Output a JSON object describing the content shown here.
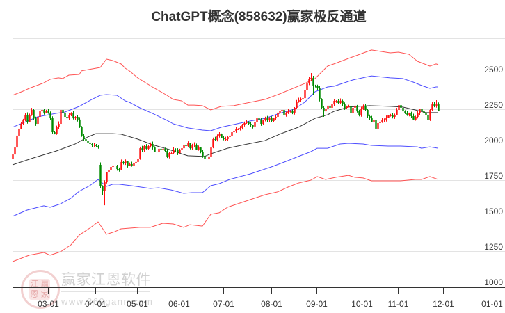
{
  "page": {
    "title": "ChatGPT概念(858632)赢家极反通道"
  },
  "watermark": {
    "brand_text": "赢家江恩软件",
    "url_text": "www.360gann.com",
    "seal_chars": [
      "江",
      "赢",
      "恩",
      "家"
    ]
  },
  "chart_data": {
    "type": "candlestick",
    "title": "ChatGPT概念(858632)赢家极反通道",
    "xlabel": "",
    "ylabel": "",
    "ylim": [
      1000,
      2750
    ],
    "grid": true,
    "legend": null,
    "y_ticks": [
      1000,
      1250,
      1500,
      1750,
      2000,
      2250,
      2500
    ],
    "x_ticks": [
      {
        "label": "03-01",
        "index": 17
      },
      {
        "label": "04-01",
        "index": 39.7
      },
      {
        "label": "05-01",
        "index": 59.7
      },
      {
        "label": "06-01",
        "index": 79.7
      },
      {
        "label": "07-01",
        "index": 101
      },
      {
        "label": "08-01",
        "index": 124
      },
      {
        "label": "09-01",
        "index": 145.7
      },
      {
        "label": "10-01",
        "index": 167.3
      },
      {
        "label": "11-01",
        "index": 184.7
      },
      {
        "label": "12-01",
        "index": 206.3
      },
      {
        "label": "01-01",
        "index": 229.7
      }
    ],
    "colors": {
      "up": "#ff1010",
      "down": "#008a00",
      "grid": "#e3e3e3",
      "axis": "#333333",
      "last_price": "#159c15"
    },
    "candles": {
      "first_open": 1900,
      "close": [
        1931,
        1980,
        2064,
        2113,
        2147,
        2177,
        2211,
        2162,
        2211,
        2245,
        2186,
        2147,
        2196,
        2235,
        2245,
        2226,
        2235,
        2226,
        2186,
        2088,
        2078,
        2123,
        2147,
        2245,
        2226,
        2196,
        2186,
        2206,
        2221,
        2186,
        2196,
        2177,
        2123,
        2064,
        2039,
        2025,
        2015,
        2005,
        1995,
        2000,
        1990,
        1980,
        1706,
        1672,
        1735,
        1804,
        1819,
        1843,
        1853,
        1853,
        1828,
        1824,
        1878,
        1868,
        1882,
        1853,
        1863,
        1853,
        1868,
        1878,
        1902,
        1975,
        1961,
        1990,
        1971,
        1990,
        2005,
        1980,
        1951,
        1946,
        1971,
        1966,
        1971,
        1956,
        1917,
        1941,
        1941,
        1966,
        1961,
        1941,
        1966,
        1975,
        2000,
        1990,
        2010,
        1975,
        1995,
        2000,
        1966,
        1980,
        1951,
        1922,
        1902,
        1897,
        1917,
        1980,
        2039,
        2034,
        2064,
        2074,
        2049,
        2039,
        2039,
        2054,
        2064,
        2088,
        2098,
        2108,
        2108,
        2118,
        2142,
        2152,
        2157,
        2147,
        2137,
        2128,
        2157,
        2186,
        2177,
        2147,
        2172,
        2186,
        2172,
        2186,
        2167,
        2186,
        2196,
        2226,
        2235,
        2245,
        2211,
        2221,
        2235,
        2235,
        2226,
        2260,
        2304,
        2314,
        2324,
        2328,
        2387,
        2431,
        2461,
        2471,
        2417,
        2412,
        2397,
        2319,
        2260,
        2235,
        2255,
        2275,
        2260,
        2284,
        2309,
        2309,
        2294,
        2309,
        2284,
        2260,
        2270,
        2270,
        2221,
        2260,
        2275,
        2235,
        2211,
        2250,
        2275,
        2245,
        2201,
        2186,
        2162,
        2172,
        2113,
        2152,
        2162,
        2172,
        2177,
        2191,
        2206,
        2206,
        2196,
        2211,
        2245,
        2279,
        2260,
        2235,
        2221,
        2211,
        2221,
        2201,
        2177,
        2196,
        2221,
        2250,
        2235,
        2221,
        2211,
        2172,
        2245,
        2284,
        2275,
        2284,
        2240
      ],
      "open_overrides": {
        "42": 1858
      },
      "high_overrides": {
        "41": 2000,
        "143": 2505,
        "201": 2299,
        "203": 2314
      },
      "low_overrides": {
        "0": 1890,
        "43": 1647,
        "44": 1573,
        "144": 2348,
        "149": 2196,
        "162": 2172
      }
    },
    "last_price_line": {
      "value": 2240,
      "style": "dashed"
    },
    "series": [
      {
        "name": "red-upper",
        "color": "#ff4040",
        "points": [
          [
            0,
            2348
          ],
          [
            5,
            2377
          ],
          [
            8,
            2397
          ],
          [
            15,
            2436
          ],
          [
            18,
            2461
          ],
          [
            22,
            2471
          ],
          [
            24,
            2466
          ],
          [
            27,
            2490
          ],
          [
            32,
            2495
          ],
          [
            33,
            2520
          ],
          [
            38,
            2534
          ],
          [
            42,
            2544
          ],
          [
            45,
            2603
          ],
          [
            48,
            2593
          ],
          [
            52,
            2569
          ],
          [
            54,
            2539
          ],
          [
            56,
            2520
          ],
          [
            60,
            2471
          ],
          [
            67,
            2407
          ],
          [
            74,
            2348
          ],
          [
            77,
            2319
          ],
          [
            81,
            2309
          ],
          [
            84,
            2279
          ],
          [
            87,
            2279
          ],
          [
            91,
            2275
          ],
          [
            95,
            2245
          ],
          [
            100,
            2270
          ],
          [
            106,
            2275
          ],
          [
            114,
            2299
          ],
          [
            121,
            2319
          ],
          [
            128,
            2358
          ],
          [
            140,
            2431
          ],
          [
            145,
            2466
          ],
          [
            151,
            2554
          ],
          [
            154,
            2569
          ],
          [
            162,
            2613
          ],
          [
            172,
            2667
          ],
          [
            181,
            2647
          ],
          [
            185,
            2652
          ],
          [
            190,
            2637
          ],
          [
            194,
            2588
          ],
          [
            200,
            2554
          ],
          [
            203,
            2569
          ],
          [
            204,
            2564
          ]
        ]
      },
      {
        "name": "blue-upper",
        "color": "#3a3aff",
        "points": [
          [
            0,
            2123
          ],
          [
            12,
            2196
          ],
          [
            21,
            2221
          ],
          [
            25,
            2230
          ],
          [
            32,
            2270
          ],
          [
            38,
            2319
          ],
          [
            42,
            2348
          ],
          [
            45,
            2353
          ],
          [
            50,
            2348
          ],
          [
            54,
            2309
          ],
          [
            56,
            2299
          ],
          [
            61,
            2260
          ],
          [
            67,
            2221
          ],
          [
            74,
            2172
          ],
          [
            77,
            2147
          ],
          [
            84,
            2118
          ],
          [
            91,
            2103
          ],
          [
            95,
            2098
          ],
          [
            100,
            2123
          ],
          [
            106,
            2142
          ],
          [
            114,
            2167
          ],
          [
            121,
            2186
          ],
          [
            128,
            2221
          ],
          [
            135,
            2250
          ],
          [
            140,
            2299
          ],
          [
            145,
            2373
          ],
          [
            151,
            2407
          ],
          [
            154,
            2412
          ],
          [
            163,
            2456
          ],
          [
            172,
            2485
          ],
          [
            181,
            2471
          ],
          [
            187,
            2466
          ],
          [
            192,
            2441
          ],
          [
            196,
            2417
          ],
          [
            200,
            2397
          ],
          [
            203,
            2407
          ],
          [
            204,
            2407
          ]
        ]
      },
      {
        "name": "black-middle",
        "color": "#222222",
        "points": [
          [
            0,
            1858
          ],
          [
            10,
            1907
          ],
          [
            21,
            1956
          ],
          [
            30,
            2005
          ],
          [
            36,
            2054
          ],
          [
            40,
            2078
          ],
          [
            45,
            2078
          ],
          [
            48,
            2078
          ],
          [
            52,
            2074
          ],
          [
            60,
            2039
          ],
          [
            67,
            2000
          ],
          [
            75,
            1966
          ],
          [
            81,
            1936
          ],
          [
            84,
            1922
          ],
          [
            92,
            1917
          ],
          [
            95,
            1936
          ],
          [
            103,
            1975
          ],
          [
            111,
            2000
          ],
          [
            121,
            2029
          ],
          [
            128,
            2074
          ],
          [
            137,
            2123
          ],
          [
            145,
            2186
          ],
          [
            151,
            2211
          ],
          [
            154,
            2235
          ],
          [
            161,
            2265
          ],
          [
            171,
            2275
          ],
          [
            181,
            2270
          ],
          [
            187,
            2265
          ],
          [
            193,
            2245
          ],
          [
            198,
            2226
          ],
          [
            204,
            2226
          ]
        ]
      },
      {
        "name": "blue-lower",
        "color": "#3a3aff",
        "points": [
          [
            0,
            1495
          ],
          [
            7,
            1539
          ],
          [
            15,
            1569
          ],
          [
            18,
            1559
          ],
          [
            23,
            1583
          ],
          [
            28,
            1623
          ],
          [
            32,
            1672
          ],
          [
            37,
            1711
          ],
          [
            41,
            1755
          ],
          [
            45,
            1706
          ],
          [
            48,
            1721
          ],
          [
            51,
            1721
          ],
          [
            57,
            1711
          ],
          [
            66,
            1691
          ],
          [
            70,
            1696
          ],
          [
            76,
            1681
          ],
          [
            82,
            1657
          ],
          [
            86,
            1662
          ],
          [
            91,
            1662
          ],
          [
            95,
            1711
          ],
          [
            99,
            1725
          ],
          [
            104,
            1755
          ],
          [
            114,
            1794
          ],
          [
            124,
            1843
          ],
          [
            131,
            1882
          ],
          [
            137,
            1917
          ],
          [
            143,
            1951
          ],
          [
            146,
            1975
          ],
          [
            151,
            1975
          ],
          [
            157,
            2005
          ],
          [
            161,
            2010
          ],
          [
            168,
            2005
          ],
          [
            172,
            1995
          ],
          [
            180,
            1990
          ],
          [
            186,
            1990
          ],
          [
            194,
            1985
          ],
          [
            196,
            1975
          ],
          [
            200,
            1985
          ],
          [
            204,
            1975
          ]
        ]
      },
      {
        "name": "red-lower",
        "color": "#ff4040",
        "points": [
          [
            0,
            1176
          ],
          [
            8,
            1221
          ],
          [
            15,
            1240
          ],
          [
            18,
            1221
          ],
          [
            23,
            1245
          ],
          [
            28,
            1294
          ],
          [
            32,
            1363
          ],
          [
            37,
            1412
          ],
          [
            41,
            1456
          ],
          [
            45,
            1368
          ],
          [
            49,
            1387
          ],
          [
            52,
            1407
          ],
          [
            61,
            1417
          ],
          [
            66,
            1417
          ],
          [
            72,
            1446
          ],
          [
            77,
            1441
          ],
          [
            82,
            1417
          ],
          [
            85,
            1436
          ],
          [
            91,
            1426
          ],
          [
            95,
            1510
          ],
          [
            99,
            1520
          ],
          [
            103,
            1559
          ],
          [
            114,
            1613
          ],
          [
            121,
            1647
          ],
          [
            127,
            1667
          ],
          [
            132,
            1701
          ],
          [
            137,
            1730
          ],
          [
            143,
            1750
          ],
          [
            146,
            1775
          ],
          [
            150,
            1755
          ],
          [
            155,
            1770
          ],
          [
            161,
            1784
          ],
          [
            164,
            1770
          ],
          [
            168,
            1765
          ],
          [
            172,
            1745
          ],
          [
            180,
            1745
          ],
          [
            186,
            1745
          ],
          [
            193,
            1755
          ],
          [
            196,
            1755
          ],
          [
            200,
            1775
          ],
          [
            204,
            1755
          ]
        ]
      }
    ]
  }
}
